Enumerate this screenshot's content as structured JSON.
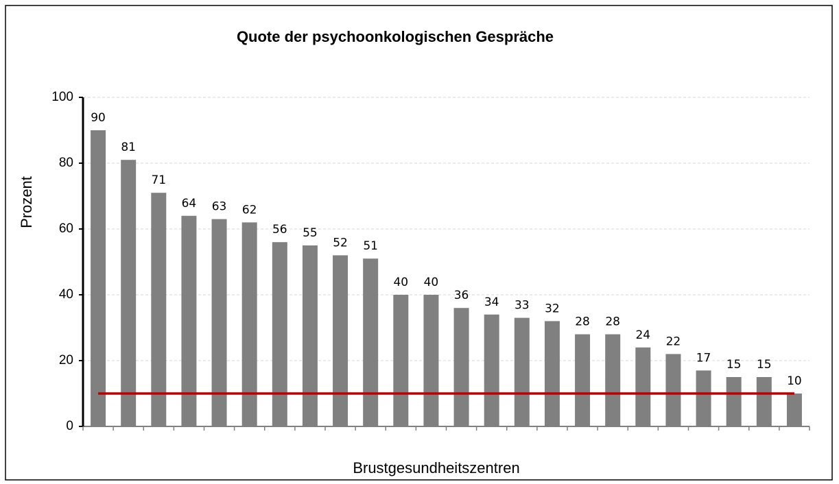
{
  "chart_data": {
    "type": "bar",
    "title": "Quote der psychoonkologischen Gespräche",
    "y_label": "Prozent",
    "x_label": "Brustgesundheitszentren",
    "categories": [
      null,
      null,
      null,
      null,
      null,
      null,
      null,
      null,
      null,
      null,
      null,
      null,
      null,
      null,
      null,
      null,
      null,
      null,
      null,
      null,
      null,
      null,
      null,
      null
    ],
    "values": [
      90,
      81,
      71,
      64,
      63,
      62,
      56,
      55,
      52,
      51,
      40,
      40,
      36,
      34,
      33,
      32,
      28,
      28,
      24,
      22,
      17,
      15,
      15,
      10
    ],
    "color": "#808080",
    "ylim": [
      0,
      100
    ],
    "yticks": [
      0,
      20,
      40,
      60,
      80,
      100
    ],
    "grid": true,
    "reference_line": 10,
    "reference_color": "#c00000"
  }
}
